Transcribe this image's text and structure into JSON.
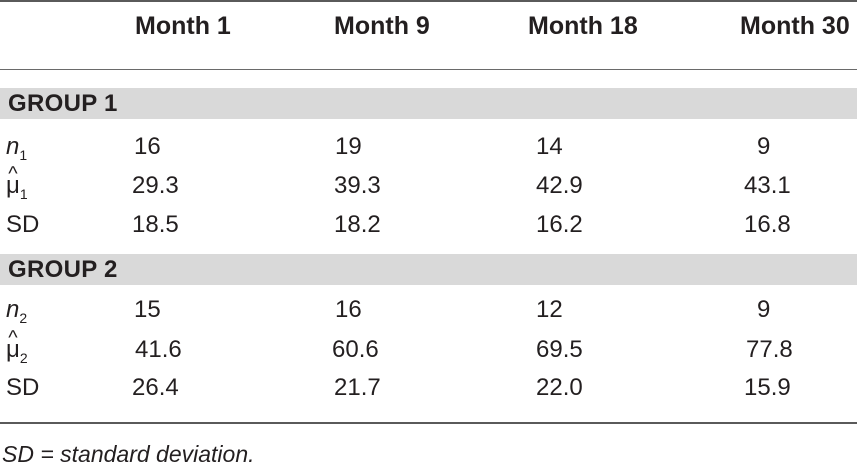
{
  "table": {
    "columns": [
      "",
      "Month 1",
      "Month 9",
      "Month 18",
      "Month 30"
    ],
    "groups": [
      {
        "title": "GROUP 1",
        "rows": [
          {
            "label": "n",
            "sub": "1",
            "style": "italic",
            "values": [
              "16",
              "19",
              "14",
              "9"
            ]
          },
          {
            "label": "μ",
            "sub": "1",
            "hat": "^",
            "style": "mu",
            "values": [
              "29.3",
              "39.3",
              "42.9",
              "43.1"
            ]
          },
          {
            "label": "SD",
            "values": [
              "18.5",
              "18.2",
              "16.2",
              "16.8"
            ]
          }
        ]
      },
      {
        "title": "GROUP 2",
        "rows": [
          {
            "label": "n",
            "sub": "2",
            "style": "italic",
            "values": [
              "15",
              "16",
              "12",
              "9"
            ]
          },
          {
            "label": "μ",
            "sub": "2",
            "hat": "^",
            "style": "mu",
            "values": [
              "41.6",
              "60.6",
              "69.5",
              "77.8"
            ]
          },
          {
            "label": "SD",
            "values": [
              "26.4",
              "21.7",
              "22.0",
              "15.9"
            ]
          }
        ]
      }
    ]
  },
  "footnote": "SD = standard deviation."
}
